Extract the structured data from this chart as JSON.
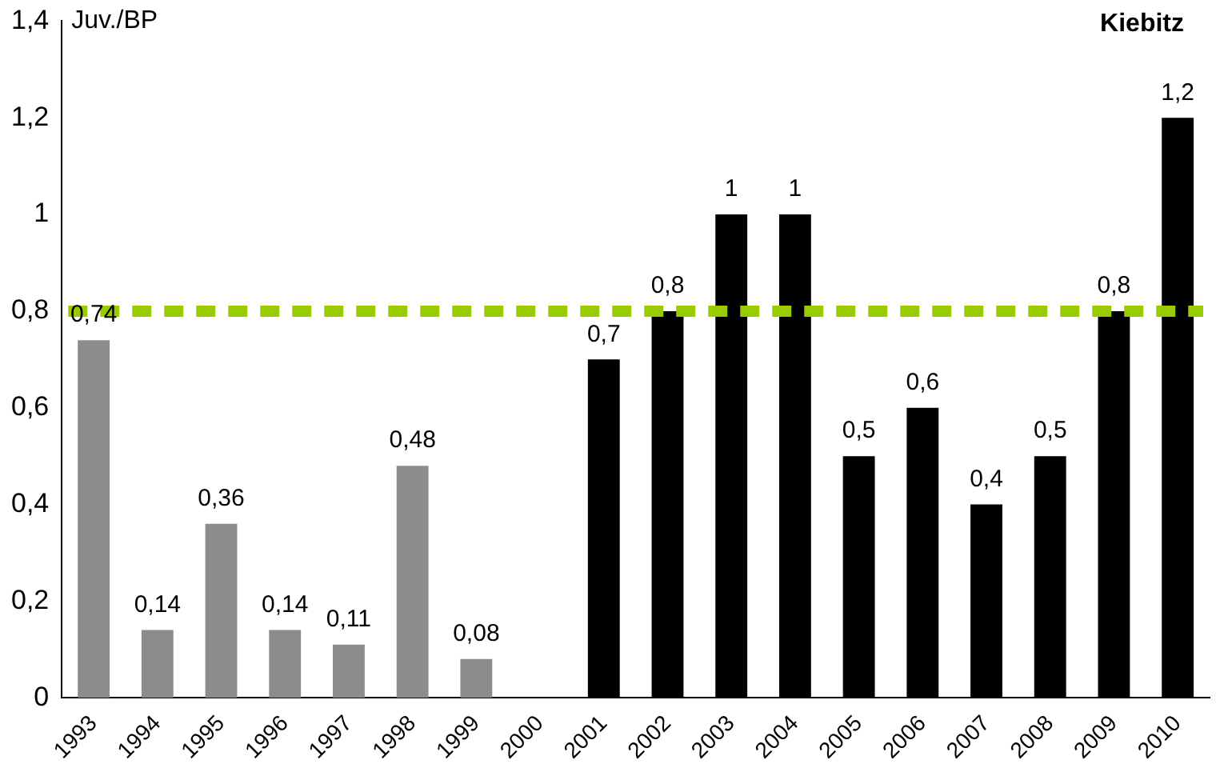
{
  "chart_data": {
    "type": "bar",
    "title": "Kiebitz",
    "ylabel": "Juv./BP",
    "categories": [
      "1993",
      "1994",
      "1995",
      "1996",
      "1997",
      "1998",
      "1999",
      "2000",
      "2001",
      "2002",
      "2003",
      "2004",
      "2005",
      "2006",
      "2007",
      "2008",
      "2009",
      "2010"
    ],
    "values": [
      0.74,
      0.14,
      0.36,
      0.14,
      0.11,
      0.48,
      0.08,
      null,
      0.7,
      0.8,
      1,
      1,
      0.5,
      0.6,
      0.4,
      0.5,
      0.8,
      1.2
    ],
    "colors": [
      "#8c8c8c",
      "#8c8c8c",
      "#8c8c8c",
      "#8c8c8c",
      "#8c8c8c",
      "#8c8c8c",
      "#8c8c8c",
      "#000000",
      "#000000",
      "#000000",
      "#000000",
      "#000000",
      "#000000",
      "#000000",
      "#000000",
      "#000000",
      "#000000",
      "#000000"
    ],
    "value_labels": [
      "0,74",
      "0,14",
      "0,36",
      "0,14",
      "0,11",
      "0,48",
      "0,08",
      null,
      "0,7",
      "0,8",
      "1",
      "1",
      "0,5",
      "0,6",
      "0,4",
      "0,5",
      "0,8",
      "1,2"
    ],
    "ylim": [
      0,
      1.4
    ],
    "yticks": [
      0,
      {
        "value": 0.2,
        "label": "0,2"
      },
      {
        "value": 0.4,
        "label": "0,4"
      },
      {
        "value": 0.6,
        "label": "0,6"
      },
      {
        "value": 0.8,
        "label": "0,8"
      },
      1,
      {
        "value": 1.2,
        "label": "1,2"
      },
      {
        "value": 1.4,
        "label": "1,4"
      }
    ],
    "ref_lines": [
      {
        "axis": "y",
        "value": 0.8,
        "color": "#99cc00",
        "line_style": "dashed"
      }
    ],
    "grid": false,
    "legend": false
  }
}
